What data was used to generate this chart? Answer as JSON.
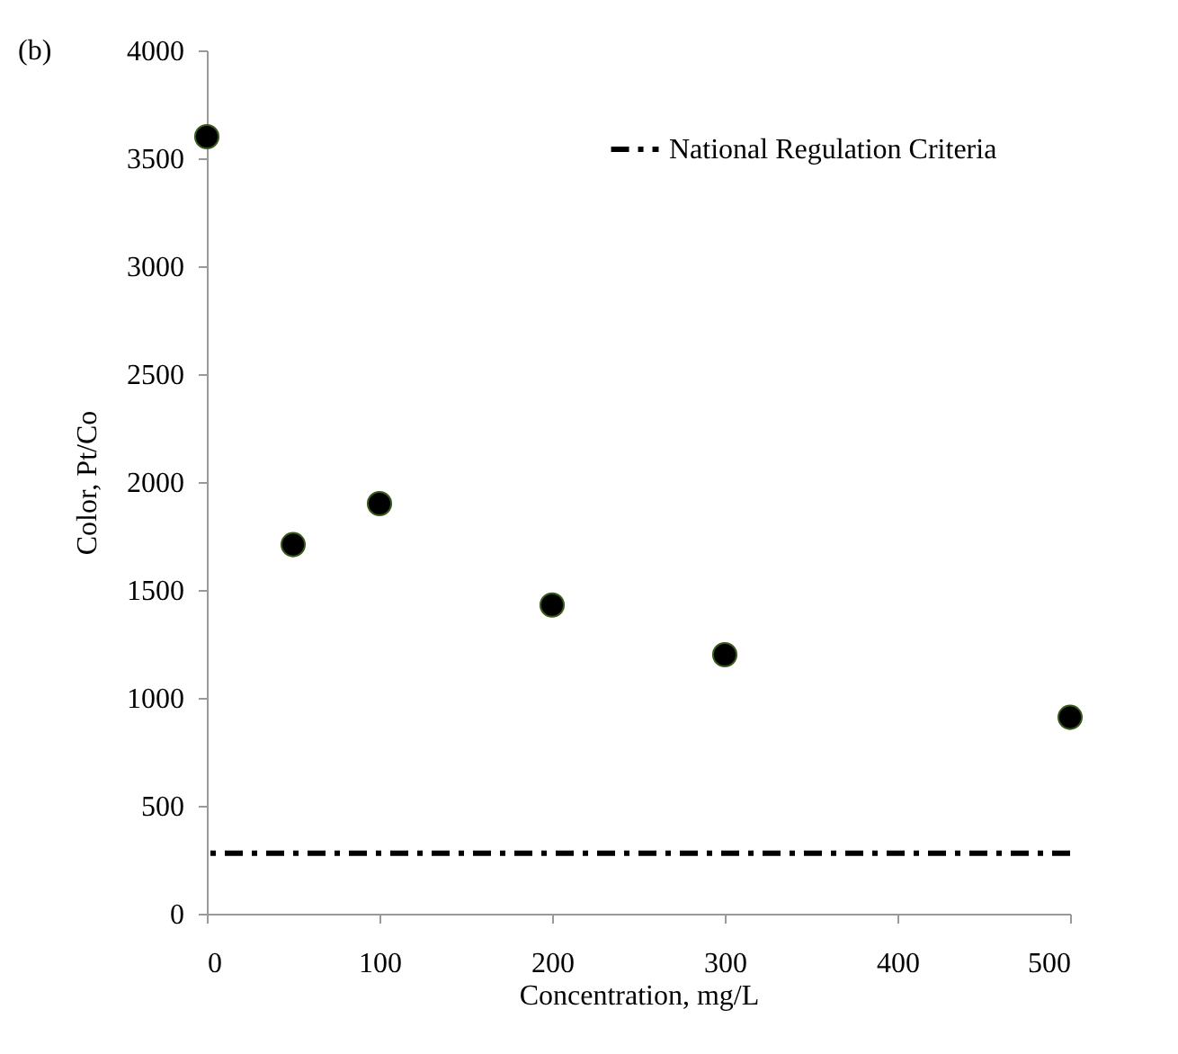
{
  "chart_data": {
    "type": "scatter",
    "xlabel": "Concentration, mg/L",
    "ylabel": "Color, Pt/Co",
    "annotations": [
      "(b)"
    ],
    "x": [
      0,
      50,
      100,
      200,
      300,
      500
    ],
    "series": [
      {
        "color": "#000000",
        "values": [
          3600,
          1710,
          1900,
          1430,
          1200,
          910
        ]
      }
    ],
    "ref_lines": [
      {
        "axis": "y",
        "value": 280,
        "label": "National Regulation Criteria",
        "color": "#000000",
        "line_style": "dashdot"
      }
    ],
    "xlim": [
      0,
      500
    ],
    "xticks": [
      0,
      100,
      200,
      300,
      400,
      500
    ],
    "ylim": [
      0,
      4000
    ],
    "yticks": [
      0,
      500,
      1000,
      1500,
      2000,
      2500,
      3000,
      3500,
      4000
    ],
    "grid": false,
    "legend": "top right",
    "marker": "circle"
  }
}
